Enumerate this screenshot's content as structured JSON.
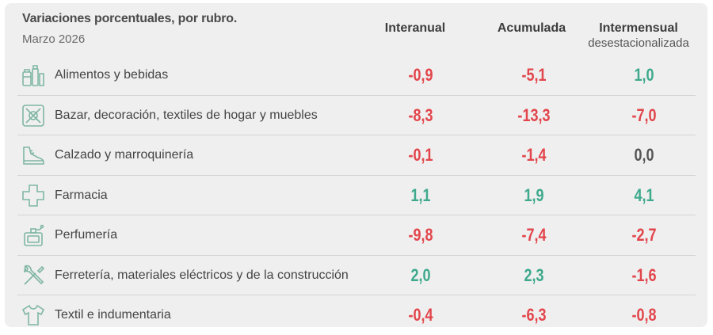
{
  "header": {
    "title": "Variaciones porcentuales, por rubro.",
    "subtitle": "Marzo 2026",
    "col1": "Interanual",
    "col2": "Acumulada",
    "col3": "Intermensual",
    "col3_sub": "desestacionalizada"
  },
  "colors": {
    "negative": "#e2454b",
    "positive": "#3ea98c",
    "neutral": "#555555",
    "icon": "#7fb6a4"
  },
  "rows": [
    {
      "icon": "grocery-icon",
      "label": "Alimentos y bebidas",
      "interanual": "-0,9",
      "acumulada": "-5,1",
      "intermensual": "1,0"
    },
    {
      "icon": "home-decor-icon",
      "label": "Bazar, decoración, textiles de hogar y muebles",
      "interanual": "-8,3",
      "acumulada": "-13,3",
      "intermensual": "-7,0"
    },
    {
      "icon": "shoe-icon",
      "label": "Calzado y marroquinería",
      "interanual": "-0,1",
      "acumulada": "-1,4",
      "intermensual": "0,0"
    },
    {
      "icon": "pharmacy-cross-icon",
      "label": "Farmacia",
      "interanual": "1,1",
      "acumulada": "1,9",
      "intermensual": "4,1"
    },
    {
      "icon": "perfume-icon",
      "label": "Perfumería",
      "interanual": "-9,8",
      "acumulada": "-7,4",
      "intermensual": "-2,7"
    },
    {
      "icon": "tools-icon",
      "label": "Ferretería, materiales eléctricos y de la construcción",
      "interanual": "2,0",
      "acumulada": "2,3",
      "intermensual": "-1,6"
    },
    {
      "icon": "tshirt-icon",
      "label": "Textil e indumentaria",
      "interanual": "-0,4",
      "acumulada": "-6,3",
      "intermensual": "-0,8"
    }
  ]
}
